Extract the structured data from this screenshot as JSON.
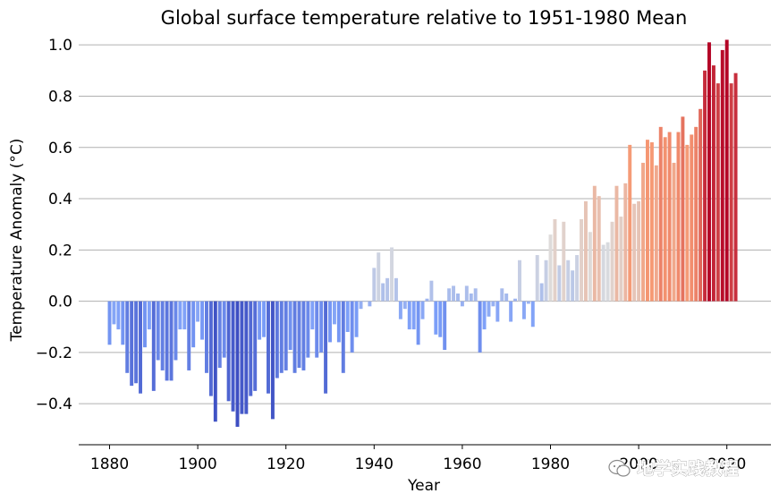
{
  "chart_data": {
    "type": "bar",
    "title": "Global surface temperature relative to 1951-1980 Mean",
    "xlabel": "Year",
    "ylabel": "Temperature Anomaly (°C)",
    "xlim": [
      1873,
      2030
    ],
    "ylim": [
      -0.56,
      1.06
    ],
    "xticks": [
      1880,
      1900,
      1920,
      1940,
      1960,
      1980,
      2000,
      2020
    ],
    "xtick_labels": [
      "1880",
      "1900",
      "1920",
      "1940",
      "1960",
      "1980",
      "2000",
      "2020"
    ],
    "yticks": [
      1.0,
      0.8,
      0.6,
      0.4,
      0.2,
      0.0,
      -0.2,
      -0.4
    ],
    "ytick_labels": [
      "1.0",
      "0.8",
      "0.6",
      "0.4",
      "0.2",
      "0.0",
      "−0.2",
      "−0.4"
    ],
    "grid": "horizontal",
    "colormap": "coolwarm",
    "color_range": [
      -0.5,
      1.0
    ],
    "x_start": 1880,
    "values": [
      -0.17,
      -0.09,
      -0.11,
      -0.17,
      -0.28,
      -0.33,
      -0.32,
      -0.36,
      -0.18,
      -0.11,
      -0.35,
      -0.23,
      -0.27,
      -0.31,
      -0.31,
      -0.23,
      -0.11,
      -0.11,
      -0.27,
      -0.18,
      -0.08,
      -0.15,
      -0.28,
      -0.37,
      -0.47,
      -0.26,
      -0.22,
      -0.39,
      -0.43,
      -0.49,
      -0.44,
      -0.44,
      -0.37,
      -0.35,
      -0.15,
      -0.14,
      -0.36,
      -0.46,
      -0.3,
      -0.28,
      -0.27,
      -0.19,
      -0.28,
      -0.26,
      -0.27,
      -0.22,
      -0.11,
      -0.22,
      -0.2,
      -0.36,
      -0.16,
      -0.09,
      -0.16,
      -0.28,
      -0.12,
      -0.2,
      -0.14,
      -0.03,
      0.0,
      -0.02,
      0.13,
      0.19,
      0.07,
      0.09,
      0.21,
      0.09,
      -0.07,
      -0.03,
      -0.11,
      -0.11,
      -0.17,
      -0.07,
      0.01,
      0.08,
      -0.13,
      -0.14,
      -0.19,
      0.05,
      0.06,
      0.03,
      -0.02,
      0.06,
      0.03,
      0.05,
      -0.2,
      -0.11,
      -0.06,
      -0.02,
      -0.08,
      0.05,
      0.03,
      -0.08,
      0.01,
      0.16,
      -0.07,
      -0.01,
      -0.1,
      0.18,
      0.07,
      0.16,
      0.26,
      0.32,
      0.14,
      0.31,
      0.16,
      0.12,
      0.18,
      0.32,
      0.39,
      0.27,
      0.45,
      0.41,
      0.22,
      0.23,
      0.31,
      0.45,
      0.33,
      0.46,
      0.61,
      0.38,
      0.39,
      0.54,
      0.63,
      0.62,
      0.53,
      0.68,
      0.64,
      0.66,
      0.54,
      0.66,
      0.72,
      0.61,
      0.65,
      0.68,
      0.75,
      0.9,
      1.01,
      0.92,
      0.85,
      0.98,
      1.02,
      0.85,
      0.89
    ]
  },
  "watermark": {
    "text": "地学实践教程",
    "icon": "wechat-icon"
  }
}
